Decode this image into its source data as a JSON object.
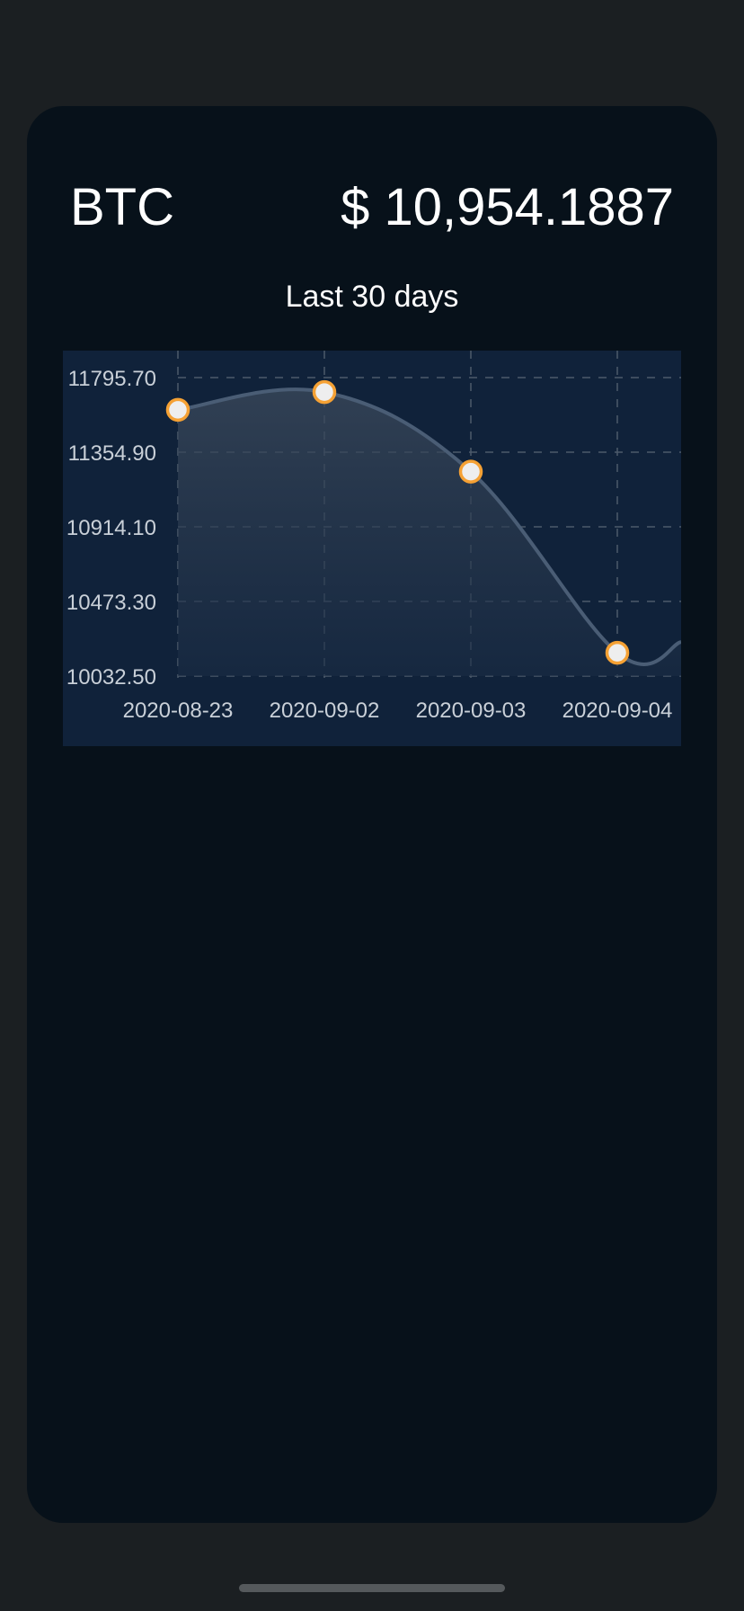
{
  "coin": {
    "symbol": "BTC",
    "price": "$ 10,954.1887"
  },
  "period_label": "Last 30 days",
  "colors": {
    "card_background": "#07111a",
    "chart_background": "#10223a",
    "line": "#4a5d75",
    "point_stroke": "#f5a134",
    "point_fill": "#eeeeee",
    "label_text": "#c9d0d8"
  },
  "chart_data": {
    "type": "line",
    "title": "",
    "xlabel": "",
    "ylabel": "",
    "categories": [
      "2020-08-23",
      "2020-09-02",
      "2020-09-03",
      "2020-09-04"
    ],
    "values": [
      11605,
      11710,
      11240,
      10170
    ],
    "y_ticks": [
      "11795.70",
      "11354.90",
      "10914.10",
      "10473.30",
      "10032.50"
    ],
    "ylim": [
      10032.5,
      11795.7
    ],
    "grid": true,
    "smooth": true,
    "fill_under_line": true,
    "legend": "none"
  }
}
